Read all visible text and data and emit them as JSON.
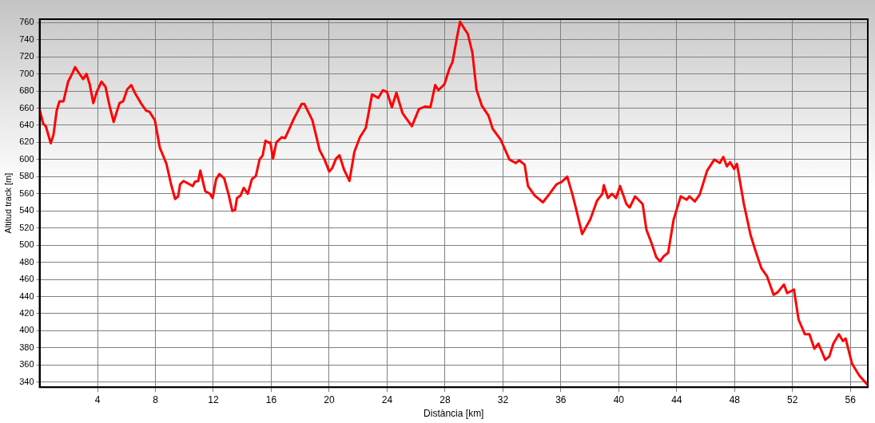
{
  "chart_data": {
    "type": "line",
    "xlabel": "Distància [km]",
    "ylabel": "Altitud track [m]",
    "xlim": [
      0,
      57.2
    ],
    "xticks": [
      4,
      8,
      12,
      16,
      20,
      24,
      28,
      32,
      36,
      40,
      44,
      48,
      52,
      56
    ],
    "ylim": [
      334,
      764
    ],
    "yticks": [
      340,
      360,
      380,
      400,
      420,
      440,
      460,
      480,
      500,
      520,
      540,
      560,
      580,
      600,
      620,
      640,
      660,
      680,
      700,
      720,
      740,
      760
    ],
    "grid": true,
    "legend": false,
    "marker": "none",
    "line_style": "solid",
    "series": [
      {
        "color": "#ff0000",
        "x": [
          0,
          0.24,
          0.43,
          0.77,
          0.96,
          1.18,
          1.37,
          1.65,
          1.97,
          2.27,
          2.45,
          2.68,
          3.01,
          3.24,
          3.46,
          3.71,
          3.95,
          4.27,
          4.55,
          4.83,
          5.11,
          5.52,
          5.77,
          6.05,
          6.33,
          6.61,
          6.99,
          7.36,
          7.58,
          7.96,
          8.3,
          8.76,
          9.08,
          9.36,
          9.57,
          9.7,
          9.94,
          10.36,
          10.58,
          10.73,
          10.96,
          11.1,
          11.44,
          11.76,
          11.95,
          12.19,
          12.42,
          12.75,
          13.07,
          13.31,
          13.5,
          13.63,
          13.88,
          14.1,
          14.38,
          14.66,
          14.94,
          15.19,
          15.41,
          15.6,
          15.79,
          15.94,
          16.12,
          16.35,
          16.72,
          16.95,
          17.28,
          17.57,
          17.85,
          18.1,
          18.28,
          18.84,
          19.34,
          19.68,
          20.0,
          20.21,
          20.47,
          20.71,
          21.03,
          21.4,
          21.74,
          22.12,
          22.53,
          22.96,
          23.39,
          23.71,
          23.99,
          24.33,
          24.64,
          25.07,
          25.71,
          26.2,
          26.65,
          26.99,
          27.32,
          27.55,
          27.96,
          28.3,
          28.52,
          28.82,
          29.04,
          29.33,
          29.57,
          29.89,
          30.17,
          30.54,
          31.01,
          31.29,
          31.85,
          32.45,
          32.88,
          33.13,
          33.5,
          33.73,
          34.19,
          34.76,
          35.22,
          35.69,
          36.07,
          36.44,
          36.82,
          37.1,
          37.47,
          38.03,
          38.5,
          38.87,
          38.97,
          39.25,
          39.53,
          39.81,
          40.09,
          40.53,
          40.75,
          41.13,
          41.65,
          41.91,
          42.25,
          42.59,
          42.85,
          43.1,
          43.41,
          43.79,
          44.28,
          44.69,
          44.88,
          45.25,
          45.59,
          46.1,
          46.6,
          46.98,
          47.22,
          47.47,
          47.69,
          47.97,
          48.16,
          48.63,
          49.1,
          49.47,
          49.85,
          50.23,
          50.69,
          50.98,
          51.41,
          51.63,
          52.1,
          52.42,
          52.85,
          53.17,
          53.51,
          53.79,
          54.26,
          54.54,
          54.82,
          55.2,
          55.48,
          55.67,
          56.1,
          56.6,
          57.17
        ],
        "values": [
          659,
          642,
          639,
          619,
          629,
          657,
          668,
          668,
          691,
          701,
          708,
          702,
          694,
          700,
          688,
          666,
          679,
          691,
          685,
          663,
          644,
          666,
          668,
          682,
          687,
          677,
          666,
          657,
          656,
          646,
          614,
          595,
          571,
          554,
          557,
          571,
          575,
          571,
          569,
          574,
          575,
          587,
          563,
          560,
          555,
          577,
          583,
          578,
          558,
          540,
          541,
          555,
          558,
          567,
          560,
          577,
          581,
          600,
          605,
          622,
          620,
          620,
          601,
          620,
          626,
          625,
          637,
          648,
          657,
          665,
          665,
          646,
          611,
          600,
          586,
          590,
          601,
          605,
          588,
          575,
          609,
          626,
          637,
          676,
          672,
          681,
          679,
          661,
          678,
          654,
          639,
          659,
          662,
          661,
          687,
          681,
          688,
          706,
          714,
          742,
          761,
          753,
          747,
          725,
          682,
          663,
          651,
          636,
          623,
          600,
          596,
          599,
          594,
          569,
          558,
          550,
          560,
          571,
          574,
          580,
          558,
          539,
          513,
          530,
          552,
          560,
          570,
          555,
          560,
          555,
          569,
          548,
          544,
          557,
          548,
          518,
          503,
          486,
          481,
          487,
          491,
          530,
          557,
          553,
          557,
          551,
          559,
          587,
          600,
          596,
          603,
          592,
          597,
          589,
          595,
          549,
          512,
          492,
          473,
          464,
          442,
          445,
          454,
          444,
          448,
          413,
          396,
          396,
          379,
          385,
          366,
          370,
          385,
          396,
          388,
          391,
          362,
          348,
          337
        ]
      }
    ]
  }
}
